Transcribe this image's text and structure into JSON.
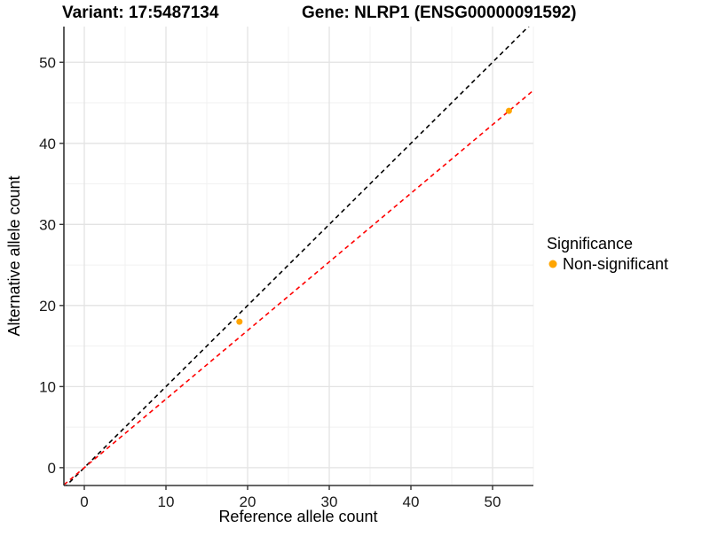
{
  "titles": {
    "variant": "Variant: 17:5487134",
    "gene": "Gene: NLRP1 (ENSG00000091592)"
  },
  "chart_data": {
    "type": "scatter",
    "title_left": "Variant: 17:5487134",
    "title_right": "Gene: NLRP1 (ENSG00000091592)",
    "xlabel": "Reference allele count",
    "ylabel": "Alternative allele count",
    "xlim": [
      -2.5,
      55
    ],
    "ylim": [
      -2.2,
      54.4
    ],
    "xticks": [
      0,
      10,
      20,
      30,
      40,
      50
    ],
    "yticks": [
      0,
      10,
      20,
      30,
      40,
      50
    ],
    "minor_ticks_x": [
      5,
      15,
      25,
      35,
      45,
      55
    ],
    "minor_ticks_y": [
      5,
      15,
      25,
      35,
      45
    ],
    "grid": true,
    "points": [
      {
        "x": 19,
        "y": 18,
        "series": "Non-significant"
      },
      {
        "x": 52,
        "y": 44,
        "series": "Non-significant"
      }
    ],
    "lines": [
      {
        "name": "identity-line",
        "slope": 1.0,
        "intercept": 0,
        "color": "#000000",
        "style": "dashed"
      },
      {
        "name": "fit-line",
        "slope": 0.846,
        "intercept": 0,
        "color": "#FF0000",
        "style": "dashed"
      }
    ],
    "legend": {
      "title": "Significance",
      "position": "right",
      "entries": [
        {
          "label": "Non-significant",
          "color": "#FFA500",
          "marker": "circle"
        }
      ]
    },
    "colors": {
      "point": "#FFA500",
      "grid_major": "#E3E3E3",
      "grid_minor": "#F1F1F1",
      "axis": "#333333",
      "background": "#FFFFFF"
    }
  }
}
